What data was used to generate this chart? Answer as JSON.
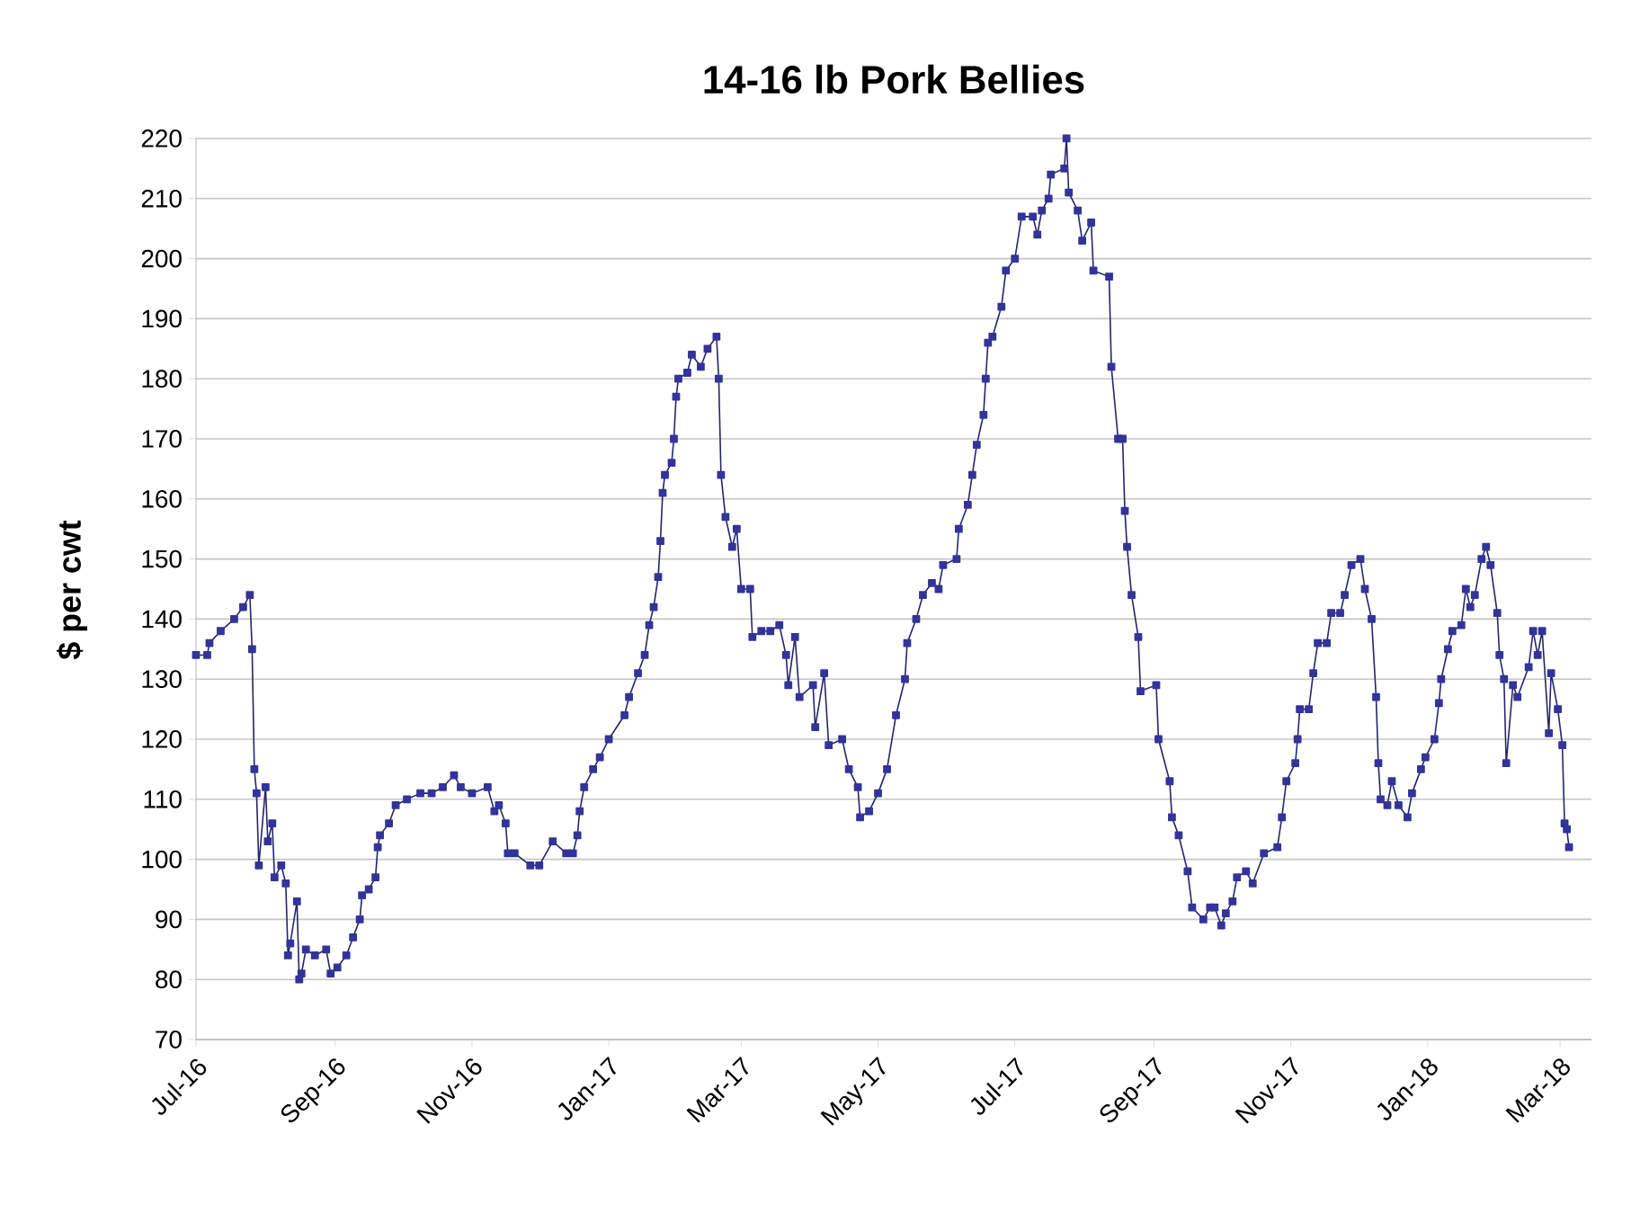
{
  "chart_data": {
    "type": "line",
    "title": "14-16 lb Pork Bellies",
    "ylabel": "$ per cwt",
    "x": [
      "2016-07-01",
      "2016-07-06",
      "2016-07-07",
      "2016-07-12",
      "2016-07-18",
      "2016-07-22",
      "2016-07-25",
      "2016-07-26",
      "2016-07-27",
      "2016-07-28",
      "2016-07-29",
      "2016-08-01",
      "2016-08-02",
      "2016-08-04",
      "2016-08-05",
      "2016-08-08",
      "2016-08-10",
      "2016-08-11",
      "2016-08-12",
      "2016-08-15",
      "2016-08-16",
      "2016-08-17",
      "2016-08-19",
      "2016-08-23",
      "2016-08-28",
      "2016-08-30",
      "2016-09-02",
      "2016-09-06",
      "2016-09-09",
      "2016-09-12",
      "2016-09-13",
      "2016-09-16",
      "2016-09-19",
      "2016-09-20",
      "2016-09-21",
      "2016-09-25",
      "2016-09-28",
      "2016-10-03",
      "2016-10-09",
      "2016-10-14",
      "2016-10-19",
      "2016-10-24",
      "2016-10-27",
      "2016-11-01",
      "2016-11-08",
      "2016-11-11",
      "2016-11-13",
      "2016-11-16",
      "2016-11-17",
      "2016-11-20",
      "2016-11-27",
      "2016-12-01",
      "2016-12-07",
      "2016-12-13",
      "2016-12-16",
      "2016-12-18",
      "2016-12-19",
      "2016-12-21",
      "2016-12-25",
      "2016-12-28",
      "2017-01-01",
      "2017-01-08",
      "2017-01-10",
      "2017-01-14",
      "2017-01-17",
      "2017-01-19",
      "2017-01-21",
      "2017-01-23",
      "2017-01-24",
      "2017-01-25",
      "2017-01-26",
      "2017-01-29",
      "2017-01-30",
      "2017-01-31",
      "2017-02-01",
      "2017-02-05",
      "2017-02-07",
      "2017-02-11",
      "2017-02-14",
      "2017-02-18",
      "2017-02-19",
      "2017-02-20",
      "2017-02-22",
      "2017-02-25",
      "2017-02-27",
      "2017-03-01",
      "2017-03-05",
      "2017-03-06",
      "2017-03-10",
      "2017-03-14",
      "2017-03-18",
      "2017-03-21",
      "2017-03-22",
      "2017-03-25",
      "2017-03-27",
      "2017-04-02",
      "2017-04-03",
      "2017-04-07",
      "2017-04-09",
      "2017-04-15",
      "2017-04-18",
      "2017-04-22",
      "2017-04-23",
      "2017-04-27",
      "2017-05-01",
      "2017-05-05",
      "2017-05-09",
      "2017-05-13",
      "2017-05-14",
      "2017-05-18",
      "2017-05-21",
      "2017-05-25",
      "2017-05-28",
      "2017-05-30",
      "2017-06-05",
      "2017-06-06",
      "2017-06-10",
      "2017-06-12",
      "2017-06-14",
      "2017-06-17",
      "2017-06-18",
      "2017-06-19",
      "2017-06-21",
      "2017-06-25",
      "2017-06-27",
      "2017-07-01",
      "2017-07-04",
      "2017-07-09",
      "2017-07-11",
      "2017-07-13",
      "2017-07-16",
      "2017-07-17",
      "2017-07-23",
      "2017-07-24",
      "2017-07-25",
      "2017-07-29",
      "2017-07-31",
      "2017-08-04",
      "2017-08-05",
      "2017-08-12",
      "2017-08-13",
      "2017-08-16",
      "2017-08-18",
      "2017-08-19",
      "2017-08-20",
      "2017-08-22",
      "2017-08-25",
      "2017-08-26",
      "2017-09-02",
      "2017-09-03",
      "2017-09-08",
      "2017-09-09",
      "2017-09-12",
      "2017-09-16",
      "2017-09-18",
      "2017-09-23",
      "2017-09-26",
      "2017-09-28",
      "2017-10-01",
      "2017-10-03",
      "2017-10-06",
      "2017-10-08",
      "2017-10-12",
      "2017-10-15",
      "2017-10-20",
      "2017-10-26",
      "2017-10-28",
      "2017-10-30",
      "2017-11-03",
      "2017-11-04",
      "2017-11-05",
      "2017-11-09",
      "2017-11-11",
      "2017-11-13",
      "2017-11-17",
      "2017-11-19",
      "2017-11-23",
      "2017-11-25",
      "2017-11-28",
      "2017-12-02",
      "2017-12-04",
      "2017-12-07",
      "2017-12-09",
      "2017-12-10",
      "2017-12-11",
      "2017-12-14",
      "2017-12-16",
      "2017-12-19",
      "2017-12-23",
      "2017-12-25",
      "2017-12-29",
      "2017-12-31",
      "2018-01-04",
      "2018-01-06",
      "2018-01-07",
      "2018-01-10",
      "2018-01-12",
      "2018-01-16",
      "2018-01-18",
      "2018-01-20",
      "2018-01-22",
      "2018-01-25",
      "2018-01-27",
      "2018-01-29",
      "2018-02-01",
      "2018-02-02",
      "2018-02-04",
      "2018-02-05",
      "2018-02-08",
      "2018-02-10",
      "2018-02-15",
      "2018-02-17",
      "2018-02-19",
      "2018-02-21",
      "2018-02-24",
      "2018-02-25",
      "2018-02-28",
      "2018-03-02",
      "2018-03-03",
      "2018-03-04",
      "2018-03-05"
    ],
    "series": [
      {
        "color": "#333399",
        "values": [
          134,
          134,
          136,
          138,
          140,
          142,
          144,
          135,
          115,
          111,
          99,
          112,
          103,
          106,
          97,
          99,
          96,
          84,
          86,
          93,
          80,
          81,
          85,
          84,
          85,
          81,
          82,
          84,
          87,
          90,
          94,
          95,
          97,
          102,
          104,
          106,
          109,
          110,
          111,
          111,
          112,
          114,
          112,
          111,
          112,
          108,
          109,
          106,
          101,
          101,
          99,
          99,
          103,
          101,
          101,
          104,
          108,
          112,
          115,
          117,
          120,
          124,
          127,
          131,
          134,
          139,
          142,
          147,
          153,
          161,
          164,
          166,
          170,
          177,
          180,
          181,
          184,
          182,
          185,
          187,
          180,
          164,
          157,
          152,
          155,
          145,
          145,
          137,
          138,
          138,
          139,
          134,
          129,
          137,
          127,
          129,
          122,
          131,
          119,
          120,
          115,
          112,
          107,
          108,
          111,
          115,
          124,
          130,
          136,
          140,
          144,
          146,
          145,
          149,
          150,
          155,
          159,
          164,
          169,
          174,
          180,
          186,
          187,
          192,
          198,
          200,
          207,
          207,
          204,
          208,
          210,
          214,
          215,
          220,
          211,
          208,
          203,
          206,
          198,
          197,
          182,
          170,
          170,
          158,
          152,
          144,
          137,
          128,
          129,
          120,
          113,
          107,
          104,
          98,
          92,
          90,
          92,
          92,
          89,
          91,
          93,
          97,
          98,
          96,
          101,
          102,
          107,
          113,
          116,
          120,
          125,
          125,
          131,
          136,
          136,
          141,
          141,
          144,
          149,
          150,
          145,
          140,
          127,
          116,
          110,
          109,
          113,
          109,
          107,
          111,
          115,
          117,
          120,
          126,
          130,
          135,
          138,
          139,
          145,
          142,
          144,
          150,
          152,
          149,
          141,
          134,
          130,
          116,
          129,
          127,
          132,
          138,
          134,
          138,
          121,
          131,
          125,
          119,
          106,
          105,
          102
        ]
      }
    ],
    "xlim": [
      "2016-07-01",
      "2018-03-15"
    ],
    "xticks": [
      {
        "value": "2016-07-01",
        "label": "Jul-16"
      },
      {
        "value": "2016-09-01",
        "label": "Sep-16"
      },
      {
        "value": "2016-11-01",
        "label": "Nov-16"
      },
      {
        "value": "2017-01-01",
        "label": "Jan-17"
      },
      {
        "value": "2017-03-01",
        "label": "Mar-17"
      },
      {
        "value": "2017-05-01",
        "label": "May-17"
      },
      {
        "value": "2017-07-01",
        "label": "Jul-17"
      },
      {
        "value": "2017-09-01",
        "label": "Sep-17"
      },
      {
        "value": "2017-11-01",
        "label": "Nov-17"
      },
      {
        "value": "2018-01-01",
        "label": "Jan-18"
      },
      {
        "value": "2018-03-01",
        "label": "Mar-18"
      }
    ],
    "ylim": [
      70,
      220
    ],
    "yticks": [
      70,
      80,
      90,
      100,
      110,
      120,
      130,
      140,
      150,
      160,
      170,
      180,
      190,
      200,
      210,
      220
    ],
    "grid": "y",
    "marker": "square",
    "line_style": "solid"
  }
}
